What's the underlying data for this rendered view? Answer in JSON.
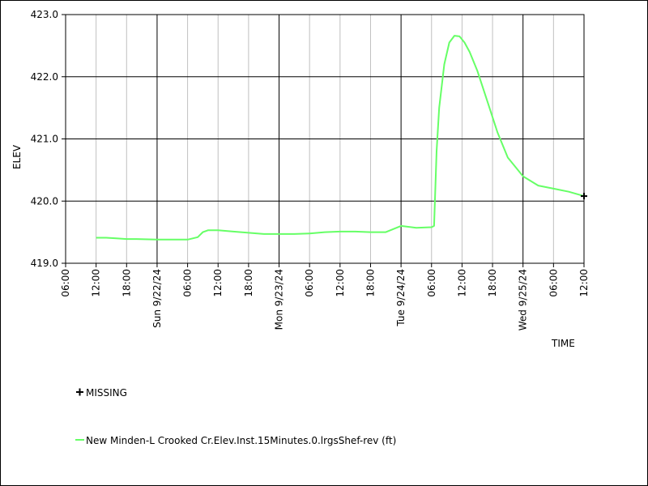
{
  "chart_data": {
    "type": "line",
    "xlabel": "TIME",
    "ylabel": "ELEV",
    "ylim": [
      419.0,
      423.0
    ],
    "xlim": [
      "2024-09-21 06:00",
      "2024-09-25 12:00"
    ],
    "y_ticks": [
      "423.0",
      "422.0",
      "421.0",
      "420.0",
      "419.0"
    ],
    "x_ticks": [
      "06:00",
      "12:00",
      "18:00",
      "Sun 9/22/24",
      "06:00",
      "12:00",
      "18:00",
      "Mon 9/23/24",
      "06:00",
      "12:00",
      "18:00",
      "Tue 9/24/24",
      "06:00",
      "12:00",
      "18:00",
      "Wed 9/25/24",
      "06:00",
      "12:00"
    ],
    "grid": true,
    "legend_position": "bottom",
    "series": [
      {
        "name": "New Minden-L Crooked Cr.Elev.Inst.15Minutes.0.lrgsShef-rev (ft)",
        "color": "#66ff66",
        "x": [
          "2024-09-21 12:00",
          "2024-09-21 14:00",
          "2024-09-21 16:00",
          "2024-09-21 18:00",
          "2024-09-21 20:00",
          "2024-09-22 00:00",
          "2024-09-22 06:00",
          "2024-09-22 07:00",
          "2024-09-22 08:00",
          "2024-09-22 09:00",
          "2024-09-22 10:00",
          "2024-09-22 11:00",
          "2024-09-22 12:00",
          "2024-09-22 15:00",
          "2024-09-22 18:00",
          "2024-09-22 21:00",
          "2024-09-23 00:00",
          "2024-09-23 03:00",
          "2024-09-23 06:00",
          "2024-09-23 09:00",
          "2024-09-23 12:00",
          "2024-09-23 15:00",
          "2024-09-23 18:00",
          "2024-09-23 21:00",
          "2024-09-24 00:00",
          "2024-09-24 03:00",
          "2024-09-24 06:00",
          "2024-09-24 06:30",
          "2024-09-24 07:00",
          "2024-09-24 07:30",
          "2024-09-24 08:30",
          "2024-09-24 09:30",
          "2024-09-24 10:30",
          "2024-09-24 11:30",
          "2024-09-24 12:30",
          "2024-09-24 13:30",
          "2024-09-24 15:00",
          "2024-09-24 17:00",
          "2024-09-24 19:00",
          "2024-09-24 21:00",
          "2024-09-25 00:00",
          "2024-09-25 03:00",
          "2024-09-25 06:00",
          "2024-09-25 09:00",
          "2024-09-25 12:00"
        ],
        "y": [
          419.41,
          419.41,
          419.4,
          419.39,
          419.39,
          419.38,
          419.38,
          419.4,
          419.42,
          419.5,
          419.53,
          419.53,
          419.53,
          419.51,
          419.49,
          419.47,
          419.47,
          419.47,
          419.48,
          419.5,
          419.51,
          419.51,
          419.5,
          419.5,
          419.6,
          419.57,
          419.58,
          419.6,
          420.8,
          421.5,
          422.2,
          422.55,
          422.66,
          422.65,
          422.55,
          422.4,
          422.1,
          421.6,
          421.1,
          420.7,
          420.4,
          420.25,
          420.2,
          420.15,
          420.08
        ]
      }
    ],
    "legend": {
      "missing_label": "MISSING"
    }
  }
}
